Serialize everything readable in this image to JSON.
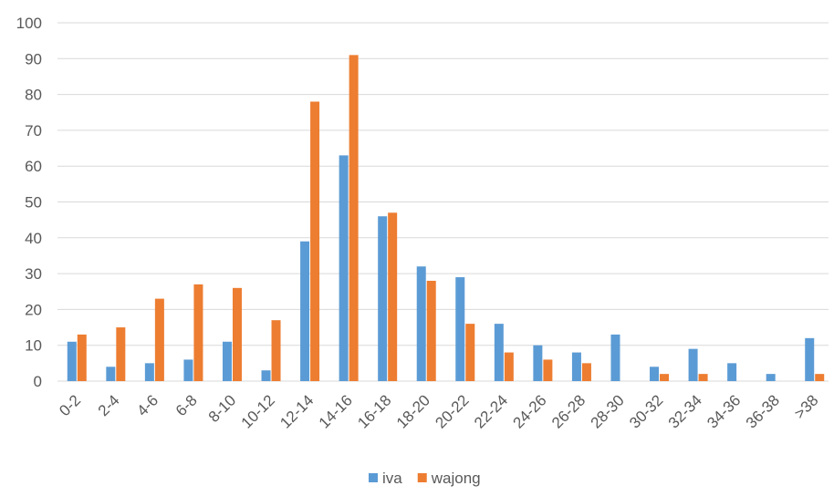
{
  "chart_data": {
    "type": "bar",
    "title": "",
    "xlabel": "",
    "ylabel": "",
    "ylim": [
      0,
      100
    ],
    "yticks": [
      0,
      10,
      20,
      30,
      40,
      50,
      60,
      70,
      80,
      90,
      100
    ],
    "grid": true,
    "legend_position": "bottom",
    "categories": [
      "0-2",
      "2-4",
      "4-6",
      "6-8",
      "8-10",
      "10-12",
      "12-14",
      "14-16",
      "16-18",
      "18-20",
      "20-22",
      "22-24",
      "24-26",
      "26-28",
      "28-30",
      "30-32",
      "32-34",
      "34-36",
      "36-38",
      ">38"
    ],
    "series": [
      {
        "name": "iva",
        "color": "#5b9bd5",
        "values": [
          11,
          4,
          5,
          6,
          11,
          3,
          39,
          63,
          46,
          32,
          29,
          16,
          10,
          8,
          13,
          4,
          9,
          5,
          2,
          12
        ]
      },
      {
        "name": "wajong",
        "color": "#ed7d31",
        "values": [
          13,
          15,
          23,
          27,
          26,
          17,
          78,
          91,
          47,
          28,
          16,
          8,
          6,
          5,
          0,
          2,
          2,
          0,
          0,
          2
        ]
      }
    ]
  }
}
